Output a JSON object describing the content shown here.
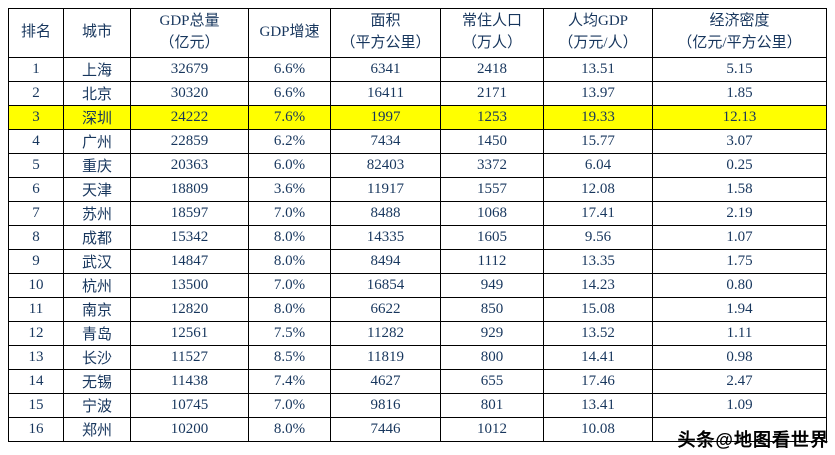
{
  "chart_data": {
    "type": "table",
    "title": "",
    "columns": [
      {
        "key": "rank",
        "line1": "排名",
        "line2": ""
      },
      {
        "key": "city",
        "line1": "城市",
        "line2": ""
      },
      {
        "key": "gdp_total",
        "line1": "GDP总量",
        "line2": "（亿元）"
      },
      {
        "key": "gdp_growth",
        "line1": "GDP增速",
        "line2": ""
      },
      {
        "key": "area",
        "line1": "面积",
        "line2": "（平方公里）"
      },
      {
        "key": "population",
        "line1": "常住人口",
        "line2": "（万人）"
      },
      {
        "key": "gdp_per_capita",
        "line1": "人均GDP",
        "line2": "（万元/人）"
      },
      {
        "key": "density",
        "line1": "经济密度",
        "line2": "（亿元/平方公里）"
      }
    ],
    "rows": [
      {
        "rank": "1",
        "city": "上海",
        "gdp_total": "32679",
        "gdp_growth": "6.6%",
        "area": "6341",
        "population": "2418",
        "gdp_per_capita": "13.51",
        "density": "5.15",
        "highlight": false
      },
      {
        "rank": "2",
        "city": "北京",
        "gdp_total": "30320",
        "gdp_growth": "6.6%",
        "area": "16411",
        "population": "2171",
        "gdp_per_capita": "13.97",
        "density": "1.85",
        "highlight": false
      },
      {
        "rank": "3",
        "city": "深圳",
        "gdp_total": "24222",
        "gdp_growth": "7.6%",
        "area": "1997",
        "population": "1253",
        "gdp_per_capita": "19.33",
        "density": "12.13",
        "highlight": true
      },
      {
        "rank": "4",
        "city": "广州",
        "gdp_total": "22859",
        "gdp_growth": "6.2%",
        "area": "7434",
        "population": "1450",
        "gdp_per_capita": "15.77",
        "density": "3.07",
        "highlight": false
      },
      {
        "rank": "5",
        "city": "重庆",
        "gdp_total": "20363",
        "gdp_growth": "6.0%",
        "area": "82403",
        "population": "3372",
        "gdp_per_capita": "6.04",
        "density": "0.25",
        "highlight": false
      },
      {
        "rank": "6",
        "city": "天津",
        "gdp_total": "18809",
        "gdp_growth": "3.6%",
        "area": "11917",
        "population": "1557",
        "gdp_per_capita": "12.08",
        "density": "1.58",
        "highlight": false
      },
      {
        "rank": "7",
        "city": "苏州",
        "gdp_total": "18597",
        "gdp_growth": "7.0%",
        "area": "8488",
        "population": "1068",
        "gdp_per_capita": "17.41",
        "density": "2.19",
        "highlight": false
      },
      {
        "rank": "8",
        "city": "成都",
        "gdp_total": "15342",
        "gdp_growth": "8.0%",
        "area": "14335",
        "population": "1605",
        "gdp_per_capita": "9.56",
        "density": "1.07",
        "highlight": false
      },
      {
        "rank": "9",
        "city": "武汉",
        "gdp_total": "14847",
        "gdp_growth": "8.0%",
        "area": "8494",
        "population": "1112",
        "gdp_per_capita": "13.35",
        "density": "1.75",
        "highlight": false
      },
      {
        "rank": "10",
        "city": "杭州",
        "gdp_total": "13500",
        "gdp_growth": "7.0%",
        "area": "16854",
        "population": "949",
        "gdp_per_capita": "14.23",
        "density": "0.80",
        "highlight": false
      },
      {
        "rank": "11",
        "city": "南京",
        "gdp_total": "12820",
        "gdp_growth": "8.0%",
        "area": "6622",
        "population": "850",
        "gdp_per_capita": "15.08",
        "density": "1.94",
        "highlight": false
      },
      {
        "rank": "12",
        "city": "青岛",
        "gdp_total": "12561",
        "gdp_growth": "7.5%",
        "area": "11282",
        "population": "929",
        "gdp_per_capita": "13.52",
        "density": "1.11",
        "highlight": false
      },
      {
        "rank": "13",
        "city": "长沙",
        "gdp_total": "11527",
        "gdp_growth": "8.5%",
        "area": "11819",
        "population": "800",
        "gdp_per_capita": "14.41",
        "density": "0.98",
        "highlight": false
      },
      {
        "rank": "14",
        "city": "无锡",
        "gdp_total": "11438",
        "gdp_growth": "7.4%",
        "area": "4627",
        "population": "655",
        "gdp_per_capita": "17.46",
        "density": "2.47",
        "highlight": false
      },
      {
        "rank": "15",
        "city": "宁波",
        "gdp_total": "10745",
        "gdp_growth": "7.0%",
        "area": "9816",
        "population": "801",
        "gdp_per_capita": "13.41",
        "density": "1.09",
        "highlight": false
      },
      {
        "rank": "16",
        "city": "郑州",
        "gdp_total": "10200",
        "gdp_growth": "8.0%",
        "area": "7446",
        "population": "1012",
        "gdp_per_capita": "10.08",
        "density": "",
        "highlight": false
      }
    ]
  },
  "watermark": {
    "text": "头条@地图看世界"
  },
  "colors": {
    "text": "#17365d",
    "highlight": "#ffff00",
    "border": "#000000",
    "watermark": "#000000"
  }
}
